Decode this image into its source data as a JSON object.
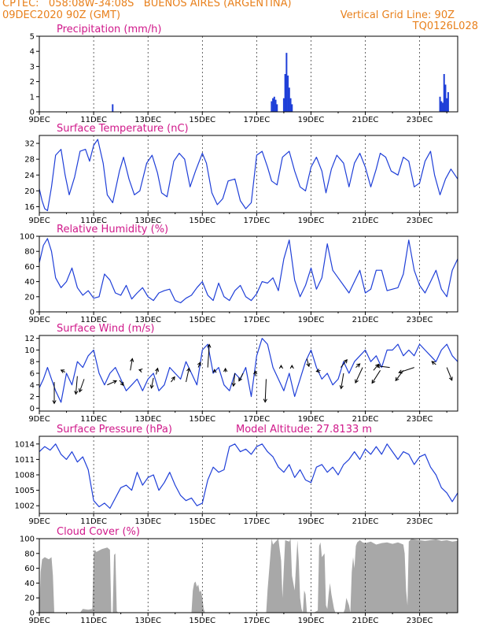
{
  "header": {
    "line1": "CPTEC:   058:08W-34:08S   BUENOS AIRES (ARGENTINA)",
    "line2_left": "09DEC2020 90Z (GMT)",
    "line2_right": "Vertical Grid Line: 90Z",
    "line3_right": "TQ0126L028"
  },
  "x_ticks": [
    "9DEC",
    "11DEC",
    "13DEC",
    "15DEC",
    "17DEC",
    "19DEC",
    "21DEC",
    "23DEC"
  ],
  "chart_data": [
    {
      "id": "precip",
      "type": "bar",
      "title": "Precipitation (mm/h)",
      "xlim": [
        9,
        24.4
      ],
      "ylim": [
        0,
        5
      ],
      "yticks": [
        0,
        1,
        2,
        3,
        4,
        5
      ],
      "x": [
        11.7,
        17.55,
        17.6,
        17.65,
        17.7,
        17.75,
        18.0,
        18.05,
        18.1,
        18.15,
        18.2,
        18.25,
        18.3,
        23.75,
        23.8,
        23.85,
        23.9,
        23.95,
        24.0,
        24.05
      ],
      "values": [
        0.5,
        0.7,
        0.9,
        1.0,
        0.8,
        0.5,
        0.9,
        2.5,
        3.9,
        2.4,
        1.6,
        0.9,
        0.5,
        1.0,
        0.7,
        0.6,
        2.5,
        1.8,
        0.9,
        1.3
      ]
    },
    {
      "id": "temp",
      "type": "line",
      "title": "Surface Temperature (nC)",
      "xlim": [
        9,
        24.4
      ],
      "ylim": [
        14.5,
        34
      ],
      "yticks": [
        16,
        20,
        24,
        28,
        32
      ],
      "x": [
        9.0,
        9.1,
        9.2,
        9.3,
        9.45,
        9.6,
        9.8,
        9.95,
        10.1,
        10.3,
        10.5,
        10.7,
        10.85,
        11.0,
        11.15,
        11.35,
        11.5,
        11.7,
        11.95,
        12.1,
        12.3,
        12.5,
        12.7,
        12.95,
        13.15,
        13.35,
        13.5,
        13.7,
        13.95,
        14.15,
        14.35,
        14.55,
        14.75,
        15.0,
        15.15,
        15.35,
        15.55,
        15.75,
        15.95,
        16.2,
        16.4,
        16.6,
        16.8,
        17.0,
        17.2,
        17.4,
        17.55,
        17.75,
        17.95,
        18.2,
        18.4,
        18.6,
        18.8,
        19.0,
        19.2,
        19.4,
        19.55,
        19.75,
        19.95,
        20.2,
        20.4,
        20.6,
        20.8,
        21.0,
        21.2,
        21.4,
        21.55,
        21.75,
        21.95,
        22.2,
        22.4,
        22.6,
        22.8,
        23.0,
        23.2,
        23.4,
        23.55,
        23.75,
        23.95,
        24.15,
        24.4
      ],
      "values": [
        20.5,
        17.5,
        15.5,
        15.0,
        21.0,
        29.0,
        30.5,
        24.0,
        19.0,
        23.5,
        30.0,
        30.5,
        27.5,
        31.5,
        33.0,
        27.0,
        19.0,
        17.0,
        25.0,
        28.5,
        23.0,
        19.0,
        20.0,
        27.0,
        29.0,
        24.5,
        19.5,
        18.5,
        27.5,
        29.5,
        28.0,
        21.0,
        25.0,
        29.5,
        27.0,
        19.5,
        16.5,
        18.0,
        22.5,
        23.0,
        17.5,
        15.5,
        17.0,
        29.0,
        30.0,
        26.0,
        22.5,
        21.5,
        28.5,
        30.0,
        25.0,
        21.0,
        20.0,
        26.0,
        28.5,
        25.0,
        19.5,
        25.5,
        29.0,
        27.0,
        21.0,
        27.0,
        29.5,
        26.0,
        21.0,
        25.5,
        29.5,
        28.5,
        25.0,
        24.0,
        28.5,
        27.5,
        21.0,
        22.0,
        27.5,
        30.0,
        24.0,
        19.0,
        23.0,
        25.5,
        23.0
      ]
    },
    {
      "id": "rh",
      "type": "line",
      "title": "Relative Humidity (%)",
      "xlim": [
        9,
        24.4
      ],
      "ylim": [
        0,
        100
      ],
      "yticks": [
        0,
        20,
        40,
        60,
        80,
        100
      ],
      "x": [
        9.0,
        9.15,
        9.3,
        9.45,
        9.6,
        9.8,
        10.0,
        10.2,
        10.4,
        10.6,
        10.8,
        11.0,
        11.2,
        11.4,
        11.6,
        11.8,
        12.0,
        12.2,
        12.4,
        12.6,
        12.8,
        13.0,
        13.2,
        13.4,
        13.6,
        13.8,
        14.0,
        14.2,
        14.4,
        14.6,
        14.8,
        15.0,
        15.2,
        15.4,
        15.6,
        15.8,
        16.0,
        16.2,
        16.4,
        16.6,
        16.8,
        17.0,
        17.2,
        17.4,
        17.6,
        17.8,
        18.0,
        18.2,
        18.4,
        18.6,
        18.8,
        19.0,
        19.2,
        19.4,
        19.6,
        19.8,
        20.0,
        20.2,
        20.4,
        20.6,
        20.8,
        21.0,
        21.2,
        21.4,
        21.6,
        21.8,
        22.0,
        22.2,
        22.4,
        22.6,
        22.8,
        23.0,
        23.2,
        23.4,
        23.6,
        23.8,
        24.0,
        24.2,
        24.4
      ],
      "values": [
        65,
        88,
        97,
        80,
        45,
        32,
        40,
        58,
        32,
        22,
        28,
        18,
        20,
        50,
        42,
        25,
        22,
        35,
        17,
        25,
        32,
        20,
        15,
        25,
        28,
        30,
        15,
        12,
        18,
        22,
        32,
        40,
        22,
        15,
        38,
        20,
        15,
        28,
        35,
        20,
        15,
        24,
        40,
        38,
        45,
        28,
        70,
        95,
        42,
        20,
        35,
        58,
        30,
        45,
        90,
        55,
        45,
        35,
        25,
        40,
        55,
        25,
        30,
        55,
        55,
        28,
        30,
        32,
        50,
        95,
        55,
        35,
        25,
        40,
        55,
        30,
        20,
        55,
        70
      ]
    },
    {
      "id": "wind",
      "type": "line",
      "title": "Surface Wind (m/s)",
      "xlim": [
        9,
        24.4
      ],
      "ylim": [
        -0.5,
        12.5
      ],
      "yticks": [
        0,
        2,
        4,
        6,
        8,
        10,
        12
      ],
      "x": [
        9.0,
        9.15,
        9.3,
        9.45,
        9.6,
        9.8,
        10.0,
        10.2,
        10.4,
        10.6,
        10.8,
        11.0,
        11.2,
        11.4,
        11.6,
        11.8,
        12.0,
        12.2,
        12.4,
        12.6,
        12.8,
        13.0,
        13.2,
        13.4,
        13.6,
        13.8,
        14.0,
        14.2,
        14.4,
        14.6,
        14.8,
        15.0,
        15.2,
        15.4,
        15.6,
        15.8,
        16.0,
        16.2,
        16.4,
        16.6,
        16.8,
        17.0,
        17.2,
        17.4,
        17.6,
        17.8,
        18.0,
        18.2,
        18.4,
        18.6,
        18.8,
        19.0,
        19.2,
        19.4,
        19.6,
        19.8,
        20.0,
        20.2,
        20.4,
        20.6,
        20.8,
        21.0,
        21.2,
        21.4,
        21.6,
        21.8,
        22.0,
        22.2,
        22.4,
        22.6,
        22.8,
        23.0,
        23.2,
        23.4,
        23.6,
        23.8,
        24.0,
        24.2,
        24.4
      ],
      "values": [
        3.5,
        5,
        7,
        5,
        3,
        1,
        6,
        4,
        8,
        7,
        9,
        10,
        6,
        4,
        6,
        7,
        5,
        3,
        4,
        5,
        3,
        5,
        6,
        3,
        4,
        7,
        6,
        5,
        8,
        6,
        4,
        10,
        11,
        6,
        7,
        4,
        3,
        6,
        5,
        7,
        2,
        9,
        12,
        11,
        7,
        5,
        3,
        6,
        2,
        5,
        8,
        10,
        7,
        5,
        6,
        4,
        5,
        8,
        6,
        8,
        9,
        10,
        8,
        9,
        7,
        10,
        10,
        11,
        9,
        10,
        9,
        11,
        10,
        9,
        8,
        10,
        11,
        9,
        8
      ]
    },
    {
      "id": "pressure",
      "type": "line",
      "title": "Surface Pressure (hPa)",
      "annotation": "Model Altitude: 27.8133 m",
      "xlim": [
        9,
        24.4
      ],
      "ylim": [
        1000.5,
        1015.5
      ],
      "yticks": [
        1002,
        1005,
        1008,
        1011,
        1014
      ],
      "x": [
        9.0,
        9.2,
        9.4,
        9.6,
        9.8,
        10.0,
        10.2,
        10.4,
        10.6,
        10.8,
        11.0,
        11.2,
        11.4,
        11.6,
        11.8,
        12.0,
        12.2,
        12.4,
        12.6,
        12.8,
        13.0,
        13.2,
        13.4,
        13.6,
        13.8,
        14.0,
        14.2,
        14.4,
        14.6,
        14.8,
        15.0,
        15.2,
        15.4,
        15.6,
        15.8,
        16.0,
        16.2,
        16.4,
        16.6,
        16.8,
        17.0,
        17.2,
        17.4,
        17.6,
        17.8,
        18.0,
        18.2,
        18.4,
        18.6,
        18.8,
        19.0,
        19.2,
        19.4,
        19.6,
        19.8,
        20.0,
        20.2,
        20.4,
        20.6,
        20.8,
        21.0,
        21.2,
        21.4,
        21.6,
        21.8,
        22.0,
        22.2,
        22.4,
        22.6,
        22.8,
        23.0,
        23.2,
        23.4,
        23.6,
        23.8,
        24.0,
        24.2,
        24.4
      ],
      "values": [
        1012.5,
        1013.5,
        1012.8,
        1014.0,
        1012.0,
        1011.0,
        1012.5,
        1010.5,
        1011.5,
        1009.0,
        1003.0,
        1001.8,
        1002.5,
        1001.5,
        1003.5,
        1005.5,
        1006.0,
        1005.0,
        1008.5,
        1006.0,
        1007.5,
        1008.0,
        1005.0,
        1006.5,
        1008.5,
        1006.0,
        1004.0,
        1003.0,
        1003.5,
        1002.0,
        1002.5,
        1007.0,
        1009.5,
        1008.5,
        1009.0,
        1013.5,
        1014.0,
        1012.5,
        1013.0,
        1012.0,
        1013.5,
        1014.0,
        1012.5,
        1011.5,
        1009.5,
        1008.5,
        1010.0,
        1007.5,
        1009.0,
        1007.0,
        1006.5,
        1009.5,
        1010.0,
        1008.5,
        1009.5,
        1008.0,
        1010.0,
        1011.0,
        1012.5,
        1011.0,
        1013.0,
        1012.0,
        1013.5,
        1012.0,
        1014.0,
        1012.5,
        1011.0,
        1012.5,
        1012.0,
        1010.0,
        1011.5,
        1012.0,
        1009.5,
        1008.0,
        1005.5,
        1004.5,
        1002.8,
        1004.5
      ]
    },
    {
      "id": "cloud",
      "type": "area",
      "title": "Cloud Cover (%)",
      "xlim": [
        9,
        24.4
      ],
      "ylim": [
        0,
        100
      ],
      "yticks": [
        0,
        20,
        40,
        60,
        80,
        100
      ],
      "fill": "#a8a8a8",
      "x": [
        9.0,
        9.05,
        9.1,
        9.2,
        9.35,
        9.45,
        9.5,
        9.55,
        10.5,
        10.6,
        10.8,
        10.95,
        11.0,
        11.05,
        11.1,
        11.3,
        11.5,
        11.6,
        11.65,
        11.7,
        11.75,
        11.8,
        11.85,
        11.9,
        14.6,
        14.65,
        14.7,
        14.75,
        14.8,
        14.85,
        14.9,
        14.95,
        15.0,
        15.05,
        15.1,
        17.35,
        17.4,
        17.5,
        17.55,
        17.6,
        17.7,
        17.8,
        17.9,
        17.95,
        18.0,
        18.05,
        18.2,
        18.25,
        18.3,
        18.4,
        18.5,
        18.55,
        18.6,
        18.65,
        18.7,
        18.75,
        18.8,
        18.85,
        19.0,
        19.1,
        19.25,
        19.3,
        19.35,
        19.4,
        19.5,
        19.55,
        19.6,
        19.65,
        19.7,
        19.75,
        19.8,
        19.85,
        19.9,
        20.2,
        20.25,
        20.3,
        20.4,
        20.45,
        20.5,
        20.55,
        20.6,
        20.65,
        20.7,
        20.8,
        20.9,
        21.0,
        21.2,
        21.4,
        21.6,
        21.8,
        22.0,
        22.2,
        22.4,
        22.45,
        22.5,
        22.55,
        22.6,
        22.65,
        22.7,
        22.8,
        23.0,
        23.2,
        23.4,
        23.6,
        23.8,
        24.0,
        24.2,
        24.4
      ],
      "values": [
        0,
        55,
        72,
        75,
        72,
        75,
        50,
        0,
        0,
        5,
        4,
        5,
        80,
        85,
        82,
        86,
        88,
        85,
        0,
        0,
        78,
        80,
        2,
        0,
        0,
        30,
        40,
        42,
        35,
        38,
        28,
        30,
        20,
        5,
        0,
        0,
        30,
        75,
        100,
        92,
        96,
        100,
        70,
        20,
        60,
        98,
        96,
        100,
        50,
        30,
        98,
        70,
        20,
        5,
        0,
        30,
        25,
        0,
        0,
        0,
        3,
        90,
        95,
        75,
        80,
        10,
        5,
        25,
        40,
        25,
        15,
        5,
        0,
        0,
        5,
        20,
        10,
        0,
        55,
        75,
        60,
        90,
        95,
        98,
        95,
        94,
        96,
        92,
        94,
        95,
        93,
        95,
        92,
        80,
        30,
        10,
        96,
        98,
        100,
        99,
        98,
        97,
        98,
        99,
        97,
        98,
        96,
        97
      ]
    }
  ],
  "wind_vectors": [
    {
      "x": 9.55,
      "y": 4.5,
      "u": 0,
      "v": -4.2
    },
    {
      "x": 9.95,
      "y": 6.2,
      "u": -0.8,
      "v": 0.4
    },
    {
      "x": 10.4,
      "y": 5.5,
      "u": -0.3,
      "v": -3.5
    },
    {
      "x": 10.65,
      "y": 5.0,
      "u": -0.9,
      "v": -2.5
    },
    {
      "x": 11.5,
      "y": 4.0,
      "u": 1.8,
      "v": 0.8
    },
    {
      "x": 11.95,
      "y": 4.8,
      "u": 0.8,
      "v": -1.0
    },
    {
      "x": 12.35,
      "y": 6.5,
      "u": 0.4,
      "v": 2.3
    },
    {
      "x": 12.75,
      "y": 6.5,
      "u": -0.4,
      "v": 0.1
    },
    {
      "x": 13.2,
      "y": 5.2,
      "u": -0.4,
      "v": -2.0
    },
    {
      "x": 13.3,
      "y": 5.8,
      "u": 0.3,
      "v": 1.2
    },
    {
      "x": 13.85,
      "y": 4.5,
      "u": 0.7,
      "v": 1.0
    },
    {
      "x": 14.4,
      "y": 4.5,
      "u": 0.6,
      "v": 2.7
    },
    {
      "x": 14.85,
      "y": 7.0,
      "u": 0.4,
      "v": 1.0
    },
    {
      "x": 15.2,
      "y": 7.0,
      "u": 0.3,
      "v": 4.5
    },
    {
      "x": 15.45,
      "y": 6.2,
      "u": 0.0,
      "v": 0.5
    },
    {
      "x": 15.85,
      "y": 6.2,
      "u": 0.0,
      "v": 0.7
    },
    {
      "x": 16.2,
      "y": 6.0,
      "u": -0.3,
      "v": -2.5
    },
    {
      "x": 16.5,
      "y": 6.0,
      "u": -0.8,
      "v": -1.5
    },
    {
      "x": 16.95,
      "y": 5.5,
      "u": 0.0,
      "v": 1.0
    },
    {
      "x": 17.35,
      "y": 5.0,
      "u": -0.2,
      "v": -4.5
    },
    {
      "x": 17.9,
      "y": 7.0,
      "u": 0.0,
      "v": 0.4
    },
    {
      "x": 18.3,
      "y": 7.0,
      "u": 0.0,
      "v": 0.4
    },
    {
      "x": 18.85,
      "y": 8.5,
      "u": 0.4,
      "v": -1.5
    },
    {
      "x": 19.35,
      "y": 6.5,
      "u": -0.8,
      "v": -0.2
    },
    {
      "x": 20.1,
      "y": 7.0,
      "u": 1.2,
      "v": 1.5
    },
    {
      "x": 20.2,
      "y": 6.0,
      "u": -0.5,
      "v": -3.0
    },
    {
      "x": 20.65,
      "y": 7.0,
      "u": 0.8,
      "v": 0.7
    },
    {
      "x": 20.9,
      "y": 7.0,
      "u": -1.4,
      "v": -3.0
    },
    {
      "x": 21.3,
      "y": 6.5,
      "u": 1.0,
      "v": 1.2
    },
    {
      "x": 21.55,
      "y": 6.5,
      "u": -1.6,
      "v": -2.5
    },
    {
      "x": 21.9,
      "y": 7.0,
      "u": -2.5,
      "v": 0.3
    },
    {
      "x": 22.4,
      "y": 6.5,
      "u": -1.5,
      "v": -2.0
    },
    {
      "x": 22.8,
      "y": 7.0,
      "u": -3.0,
      "v": -1.0
    },
    {
      "x": 23.6,
      "y": 7.5,
      "u": -0.8,
      "v": 0.6
    },
    {
      "x": 24.0,
      "y": 7.0,
      "u": 1.0,
      "v": -2.5
    }
  ],
  "colors": {
    "header": "#e8801c",
    "title": "#d0188a",
    "line": "#1f3fd8",
    "grid": "#000000",
    "cloud_fill": "#a8a8a8"
  }
}
